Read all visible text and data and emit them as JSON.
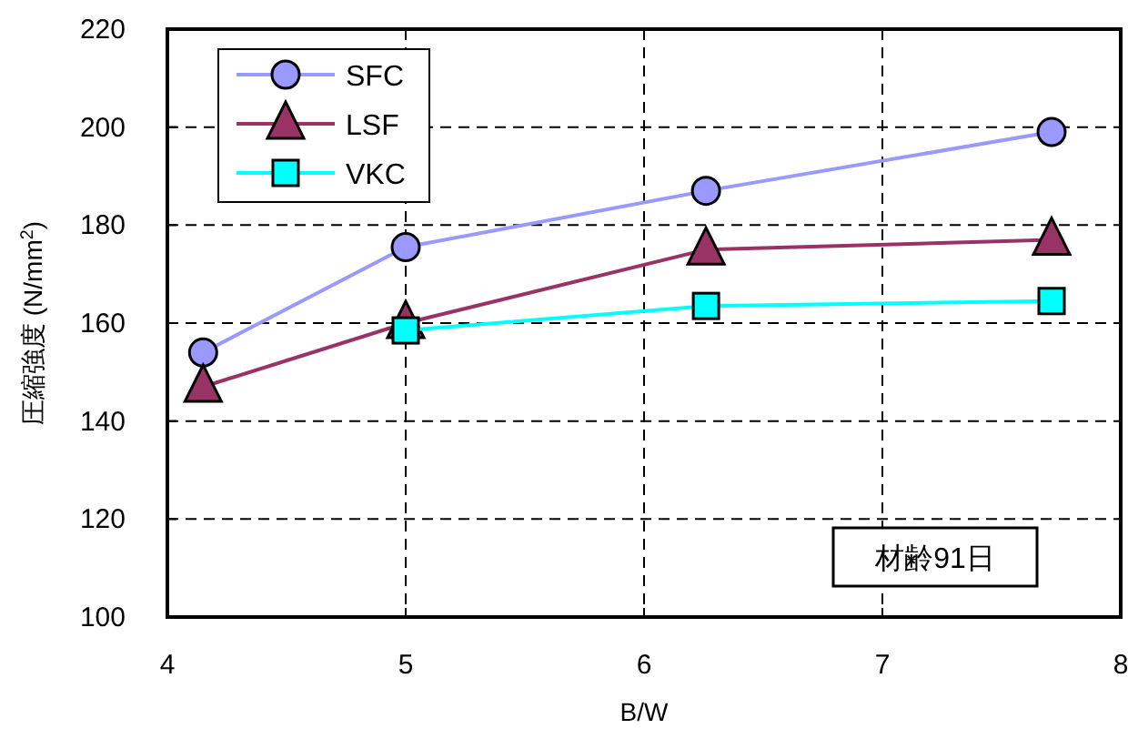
{
  "chart_data": {
    "type": "line",
    "xlabel": "B/W",
    "ylabel": "圧縮強度 (N/mm$^{2}$)",
    "x": [
      4.15,
      5,
      6.26,
      7.71
    ],
    "xlim": [
      4,
      8
    ],
    "xticks": [
      4,
      5,
      6,
      7,
      8
    ],
    "ylim": [
      100,
      220
    ],
    "yticks": [
      100,
      120,
      140,
      160,
      180,
      200,
      220
    ],
    "grid": true,
    "legend": "top left",
    "series": [
      {
        "name": "SFC",
        "color": "#9999ff",
        "marker": "circle",
        "values": [
          154,
          175.5,
          187,
          199
        ]
      },
      {
        "name": "LSF",
        "color": "#993366",
        "marker": "triangle",
        "values": [
          147,
          160,
          175,
          177
        ]
      },
      {
        "name": "VKC",
        "color": "#00ffff",
        "marker": "square",
        "values": [
          null,
          158.5,
          163.5,
          164.5
        ]
      }
    ],
    "annotations": [
      "材齢91日"
    ]
  }
}
